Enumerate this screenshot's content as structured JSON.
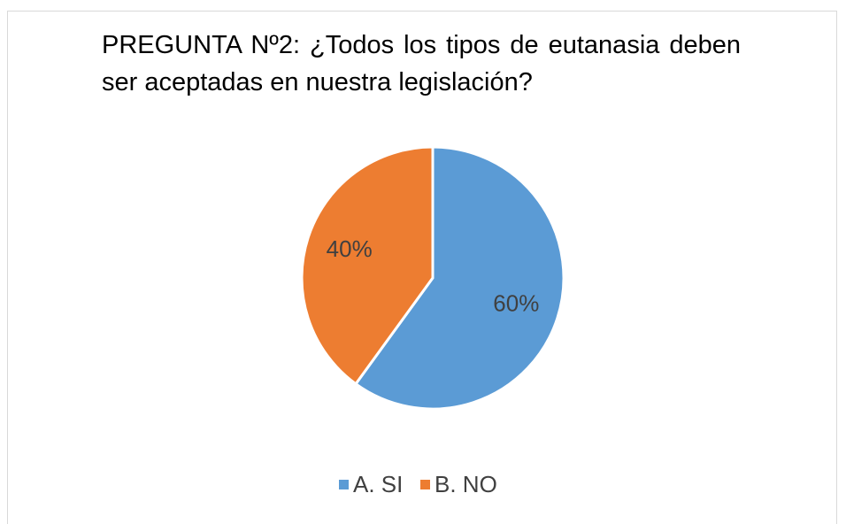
{
  "chart_data": {
    "type": "pie",
    "title": "PREGUNTA Nº2: ¿Todos los tipos de eutanasia deben ser aceptadas en nuestra legislación?",
    "categories": [
      "A. SI",
      "B. NO"
    ],
    "values": [
      60,
      40
    ],
    "value_labels": [
      "60%",
      "40%"
    ],
    "colors": [
      "#5b9bd5",
      "#ed7d31"
    ],
    "legend": "bottom"
  }
}
